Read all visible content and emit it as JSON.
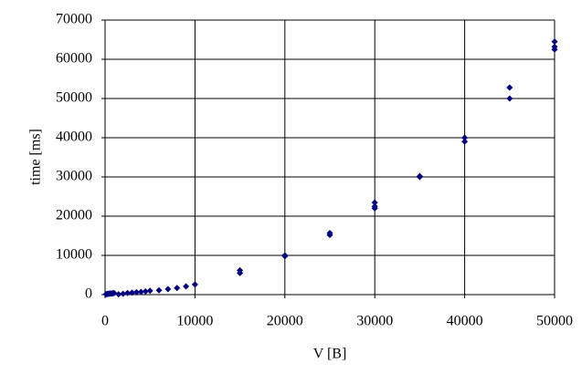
{
  "chart_data": {
    "type": "scatter",
    "xlabel": "V [B]",
    "ylabel": "time [ms]",
    "series": [
      {
        "color": "#000080",
        "x": [
          100,
          200,
          300,
          400,
          500,
          600,
          700,
          800,
          900,
          1000,
          1500,
          2000,
          2500,
          3000,
          3500,
          4000,
          4500,
          5000,
          6000,
          7000,
          8000,
          9000,
          10000,
          15000,
          15000,
          20000,
          20000,
          25000,
          25000,
          30000,
          30000,
          30000,
          35000,
          35000,
          40000,
          40000,
          45000,
          45000,
          50000,
          50000,
          50000
        ],
        "values": [
          100,
          150,
          200,
          200,
          250,
          250,
          300,
          300,
          350,
          400,
          100,
          200,
          400,
          500,
          600,
          700,
          800,
          1000,
          1100,
          1400,
          1700,
          2100,
          2600,
          5500,
          6200,
          9800,
          10000,
          15200,
          15700,
          22000,
          22500,
          23500,
          30000,
          30200,
          39000,
          40000,
          50000,
          52800,
          62500,
          63200,
          64500
        ]
      }
    ],
    "xlim": [
      0,
      50000
    ],
    "xticks": [
      0,
      10000,
      20000,
      30000,
      40000,
      50000
    ],
    "ylim": [
      0,
      70000
    ],
    "yticks": [
      0,
      10000,
      20000,
      30000,
      40000,
      50000,
      60000,
      70000
    ],
    "grid": true
  }
}
